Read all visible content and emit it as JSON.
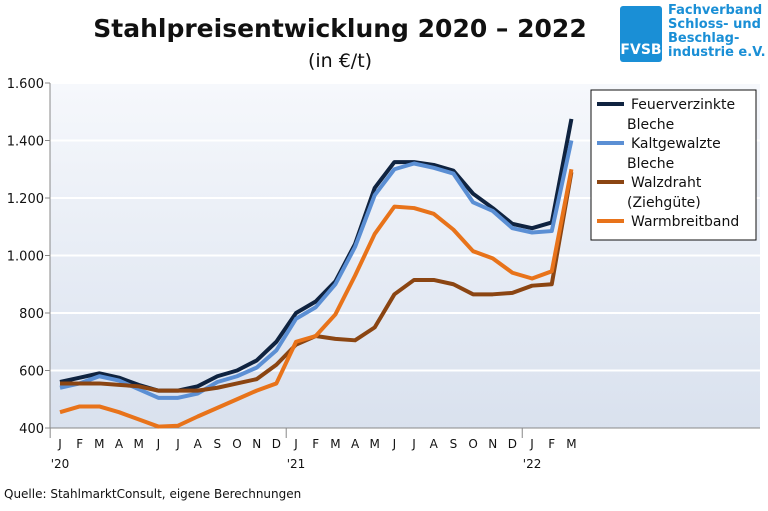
{
  "chart_data": {
    "type": "line",
    "title": "Stahlpreisentwicklung  2020 – 2022",
    "subtitle": "(in €/t)",
    "xlabel": "",
    "ylabel": "",
    "ylim": [
      400,
      1600
    ],
    "yticks": [
      400,
      600,
      800,
      1000,
      1200,
      1400,
      1600
    ],
    "ytick_labels": [
      "400",
      "600",
      "800",
      "1.000",
      "1.200",
      "1.400",
      "1.600"
    ],
    "x": [
      "J",
      "F",
      "M",
      "A",
      "M",
      "J",
      "J",
      "A",
      "S",
      "O",
      "N",
      "D",
      "J",
      "F",
      "M",
      "A",
      "M",
      "J",
      "J",
      "A",
      "S",
      "O",
      "N",
      "D",
      "J",
      "F",
      "M"
    ],
    "year_labels": [
      {
        "index": 0,
        "label": "'20"
      },
      {
        "index": 12,
        "label": "'21"
      },
      {
        "index": 24,
        "label": "'22"
      }
    ],
    "grid": true,
    "legend": "top-right",
    "series": [
      {
        "name": "Feuerverzinkte Bleche",
        "color": "#0f2340",
        "values": [
          560,
          575,
          590,
          575,
          550,
          530,
          530,
          545,
          580,
          600,
          635,
          700,
          800,
          840,
          910,
          1040,
          1235,
          1325,
          1325,
          1315,
          1295,
          1215,
          1165,
          1110,
          1095,
          1115,
          1475
        ]
      },
      {
        "name": "Kaltgewalzte Bleche",
        "color": "#5b8fd4",
        "values": [
          540,
          555,
          580,
          565,
          535,
          505,
          505,
          520,
          560,
          580,
          610,
          670,
          780,
          820,
          900,
          1030,
          1210,
          1300,
          1320,
          1305,
          1285,
          1185,
          1155,
          1095,
          1080,
          1085,
          1400
        ]
      },
      {
        "name": "Walzdraht (Ziehgüte)",
        "color": "#8b4512",
        "values": [
          555,
          555,
          555,
          550,
          545,
          530,
          530,
          530,
          540,
          555,
          570,
          620,
          690,
          720,
          710,
          705,
          750,
          865,
          915,
          915,
          900,
          865,
          865,
          870,
          895,
          900,
          1290
        ]
      },
      {
        "name": "Warmbreitband",
        "color": "#e8731a",
        "values": [
          455,
          475,
          475,
          455,
          430,
          405,
          408,
          440,
          470,
          500,
          530,
          555,
          700,
          720,
          795,
          930,
          1075,
          1170,
          1165,
          1145,
          1090,
          1015,
          990,
          940,
          920,
          945,
          1300
        ]
      }
    ]
  },
  "source": "Quelle: StahlmarktConsult, eigene Berechnungen",
  "logo": {
    "abbr": "FVSB",
    "text": "Fachverband\nSchloss- und\nBeschlag-\nindustrie e.V."
  }
}
